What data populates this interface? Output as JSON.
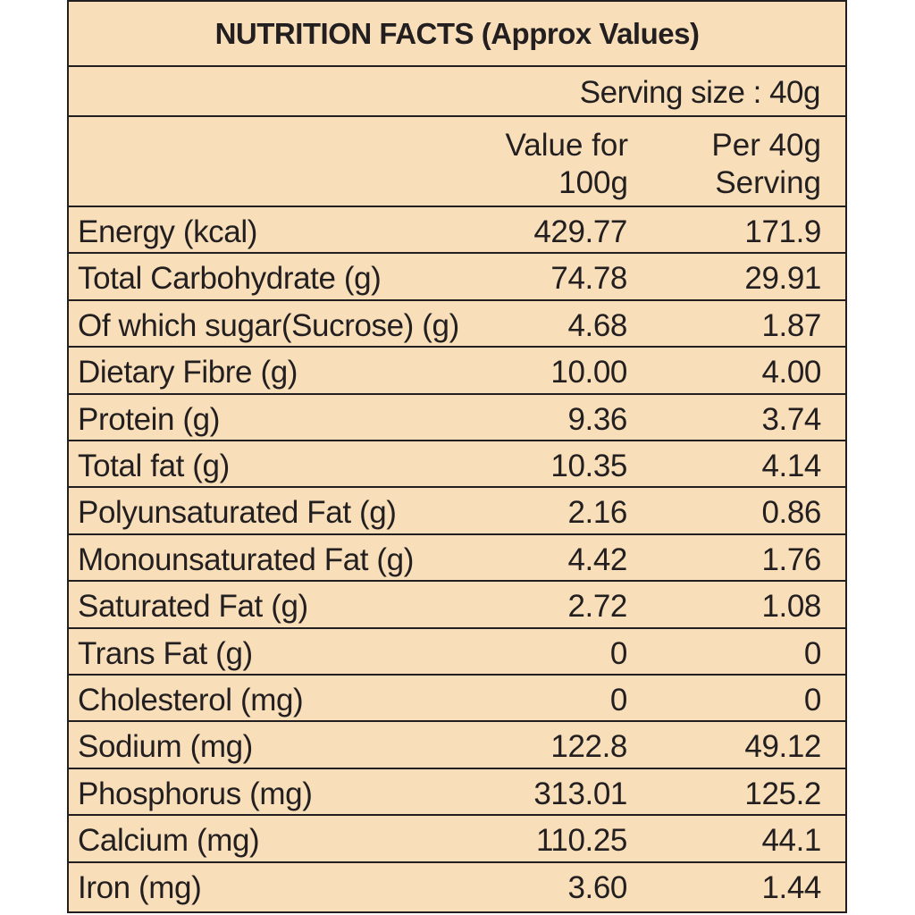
{
  "title": "NUTRITION FACTS (Approx Values)",
  "serving_size": "Serving size : 40g",
  "columns": {
    "per_100g": [
      "Value for",
      "100g"
    ],
    "per_serving": [
      "Per 40g",
      "Serving"
    ]
  },
  "rows": [
    {
      "label": "Energy (kcal)",
      "per_100g": "429.77",
      "per_serving": "171.9"
    },
    {
      "label": "Total Carbohydrate (g)",
      "per_100g": "74.78",
      "per_serving": "29.91"
    },
    {
      "label": "Of which sugar(Sucrose) (g)",
      "per_100g": "4.68",
      "per_serving": "1.87"
    },
    {
      "label": "Dietary Fibre (g)",
      "per_100g": "10.00",
      "per_serving": "4.00"
    },
    {
      "label": "Protein (g)",
      "per_100g": "9.36",
      "per_serving": "3.74"
    },
    {
      "label": "Total fat (g)",
      "per_100g": "10.35",
      "per_serving": "4.14"
    },
    {
      "label": "Polyunsaturated Fat (g)",
      "per_100g": "2.16",
      "per_serving": "0.86"
    },
    {
      "label": "Monounsaturated Fat (g)",
      "per_100g": "4.42",
      "per_serving": "1.76"
    },
    {
      "label": "Saturated Fat (g)",
      "per_100g": "2.72",
      "per_serving": "1.08"
    },
    {
      "label": "Trans Fat (g)",
      "per_100g": "0",
      "per_serving": "0"
    },
    {
      "label": "Cholesterol (mg)",
      "per_100g": "0",
      "per_serving": "0"
    },
    {
      "label": "Sodium (mg)",
      "per_100g": "122.8",
      "per_serving": "49.12"
    },
    {
      "label": "Phosphorus (mg)",
      "per_100g": "313.01",
      "per_serving": "125.2"
    },
    {
      "label": "Calcium (mg)",
      "per_100g": "110.25",
      "per_serving": "44.1"
    },
    {
      "label": "Iron (mg)",
      "per_100g": "3.60",
      "per_serving": "1.44"
    }
  ]
}
